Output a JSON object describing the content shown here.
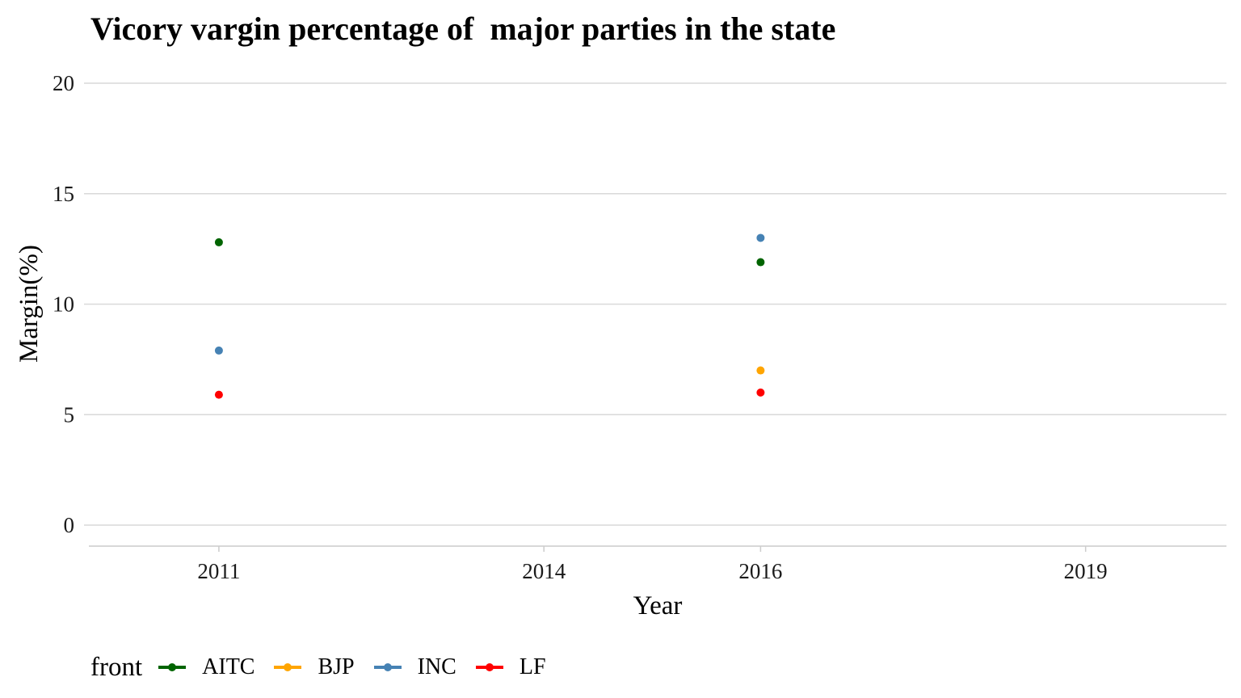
{
  "chart_data": {
    "type": "scatter",
    "title": "Vicory vargin percentage of  major parties in the state",
    "xlabel": "Year",
    "ylabel": "Margin(%)",
    "x_categories": [
      "2011",
      "2014",
      "2016",
      "2019"
    ],
    "y_ticks": [
      0,
      5,
      10,
      15,
      20
    ],
    "ylim": [
      0,
      20
    ],
    "grid": "horizontal",
    "legend": {
      "title": "front",
      "placement": "bottom-left"
    },
    "series": [
      {
        "name": "AITC",
        "color": "#006400",
        "points": [
          {
            "x": "2011",
            "y": 12.8
          },
          {
            "x": "2016",
            "y": 11.9
          }
        ]
      },
      {
        "name": "BJP",
        "color": "#FFA500",
        "points": [
          {
            "x": "2016",
            "y": 7.0
          }
        ]
      },
      {
        "name": "INC",
        "color": "#4682B4",
        "points": [
          {
            "x": "2011",
            "y": 7.9
          },
          {
            "x": "2016",
            "y": 13.0
          }
        ]
      },
      {
        "name": "LF",
        "color": "#FF0000",
        "points": [
          {
            "x": "2011",
            "y": 5.9
          },
          {
            "x": "2016",
            "y": 6.0
          }
        ]
      }
    ]
  }
}
